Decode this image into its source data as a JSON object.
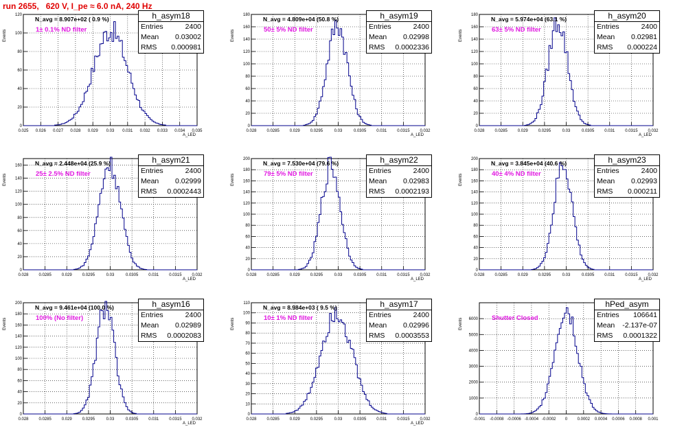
{
  "title": "run 2655,   620 V, I_pe ≈ 6.0 nA, 240 Hz",
  "colors": {
    "title": "#e00000",
    "filter": "#e018e0",
    "histogram": "#00008b"
  },
  "stat_labels": {
    "entries": "Entries",
    "mean": "Mean",
    "rms": "RMS"
  },
  "chart_data": [
    {
      "type": "bar",
      "name": "h_asym18",
      "entries": "2400",
      "mean": "0.03002",
      "rms": "0.000981",
      "navg": "N_avg = 8.907e+02 ( 0.9 %)",
      "filter": "1± 0.1% ND filter",
      "ylabel": "Events",
      "xlabel": "A_LED",
      "xlim": [
        0.025,
        0.035
      ],
      "ylim": [
        0,
        120
      ],
      "xticks": [
        "0.025",
        "0.026",
        "0.027",
        "0.028",
        "0.029",
        "0.03",
        "0.031",
        "0.032",
        "0.033",
        "0.034",
        "0.035"
      ],
      "yticks": [
        "0",
        "20",
        "40",
        "60",
        "80",
        "100",
        "120"
      ],
      "mu": 0.03002,
      "sigma": 0.000981,
      "peak": 103
    },
    {
      "type": "bar",
      "name": "h_asym19",
      "entries": "2400",
      "mean": "0.02998",
      "rms": "0.0002336",
      "navg": "N_avg = 4.809e+04 (50.8 %)",
      "filter": "50± 5% ND filter",
      "ylabel": "Events",
      "xlabel": "A_LED",
      "xlim": [
        0.028,
        0.032
      ],
      "ylim": [
        0,
        180
      ],
      "xticks": [
        "0.028",
        "0.0285",
        "0.029",
        "0.0295",
        "0.03",
        "0.0305",
        "0.031",
        "0.0315",
        "0.032"
      ],
      "yticks": [
        "0",
        "20",
        "40",
        "60",
        "80",
        "100",
        "120",
        "140",
        "160",
        "180"
      ],
      "mu": 0.02998,
      "sigma": 0.0002336,
      "peak": 165
    },
    {
      "type": "bar",
      "name": "h_asym20",
      "entries": "2400",
      "mean": "0.02981",
      "rms": "0.000224",
      "navg": "N_avg = 5.974e+04 (63.1 %)",
      "filter": "63± 5% ND filter",
      "ylabel": "Events",
      "xlabel": "A_LED",
      "xlim": [
        0.028,
        0.032
      ],
      "ylim": [
        0,
        180
      ],
      "xticks": [
        "0.028",
        "0.0285",
        "0.029",
        "0.0295",
        "0.03",
        "0.0305",
        "0.031",
        "0.0315",
        "0.032"
      ],
      "yticks": [
        "0",
        "20",
        "40",
        "60",
        "80",
        "100",
        "120",
        "140",
        "160",
        "180"
      ],
      "mu": 0.02981,
      "sigma": 0.000224,
      "peak": 170
    },
    {
      "type": "bar",
      "name": "h_asym21",
      "entries": "2400",
      "mean": "0.02999",
      "rms": "0.0002443",
      "navg": "N_avg = 2.448e+04 (25.9 %)",
      "filter": "25± 2.5% ND filter",
      "ylabel": "Events",
      "xlabel": "A_LED",
      "xlim": [
        0.028,
        0.032
      ],
      "ylim": [
        0,
        170
      ],
      "xticks": [
        "0.028",
        "0.0285",
        "0.029",
        "0.0295",
        "0.03",
        "0.0305",
        "0.031",
        "0.0315",
        "0.032"
      ],
      "yticks": [
        "0",
        "20",
        "40",
        "60",
        "80",
        "100",
        "120",
        "140",
        "160"
      ],
      "mu": 0.02999,
      "sigma": 0.0002443,
      "peak": 165
    },
    {
      "type": "bar",
      "name": "h_asym22",
      "entries": "2400",
      "mean": "0.02983",
      "rms": "0.0002193",
      "navg": "N_avg = 7.530e+04 (79.6 %)",
      "filter": "79± 5% ND filter",
      "ylabel": "Events",
      "xlabel": "A_LED",
      "xlim": [
        0.028,
        0.032
      ],
      "ylim": [
        0,
        200
      ],
      "xticks": [
        "0.028",
        "0.0285",
        "0.029",
        "0.0295",
        "0.03",
        "0.0305",
        "0.031",
        "0.0315",
        "0.032"
      ],
      "yticks": [
        "0",
        "20",
        "40",
        "60",
        "80",
        "100",
        "120",
        "140",
        "160",
        "180",
        "200"
      ],
      "mu": 0.02983,
      "sigma": 0.0002193,
      "peak": 188
    },
    {
      "type": "bar",
      "name": "h_asym23",
      "entries": "2400",
      "mean": "0.02993",
      "rms": "0.000211",
      "navg": "N_avg = 3.845e+04 (40.6 %)",
      "filter": "40± 4% ND filter",
      "ylabel": "Events",
      "xlabel": "A_LED",
      "xlim": [
        0.028,
        0.032
      ],
      "ylim": [
        0,
        200
      ],
      "xticks": [
        "0.028",
        "0.0285",
        "0.029",
        "0.0295",
        "0.03",
        "0.0305",
        "0.031",
        "0.0315",
        "0.032"
      ],
      "yticks": [
        "0",
        "20",
        "40",
        "60",
        "80",
        "100",
        "120",
        "140",
        "160",
        "180",
        "200"
      ],
      "mu": 0.02993,
      "sigma": 0.000211,
      "peak": 190
    },
    {
      "type": "bar",
      "name": "h_asym16",
      "entries": "2400",
      "mean": "0.02989",
      "rms": "0.0002083",
      "navg": "N_avg = 9.461e+04 (100.0 %)",
      "filter": "100% (No filter)",
      "ylabel": "Events",
      "xlabel": "A_LED",
      "xlim": [
        0.028,
        0.032
      ],
      "ylim": [
        0,
        200
      ],
      "xticks": [
        "0.028",
        "0.0285",
        "0.029",
        "0.0295",
        "0.03",
        "0.0305",
        "0.031",
        "0.0315",
        "0.032"
      ],
      "yticks": [
        "0",
        "20",
        "40",
        "60",
        "80",
        "100",
        "120",
        "140",
        "160",
        "180",
        "200"
      ],
      "mu": 0.02989,
      "sigma": 0.0002083,
      "peak": 195
    },
    {
      "type": "bar",
      "name": "h_asym17",
      "entries": "2400",
      "mean": "0.02996",
      "rms": "0.0003553",
      "navg": "N_avg = 8.984e+03 ( 9.5 %)",
      "filter": "10± 1% ND filter",
      "ylabel": "Events",
      "xlabel": "A_LED",
      "xlim": [
        0.028,
        0.032
      ],
      "ylim": [
        0,
        110
      ],
      "xticks": [
        "0.028",
        "0.0285",
        "0.029",
        "0.0295",
        "0.03",
        "0.0305",
        "0.031",
        "0.0315",
        "0.032"
      ],
      "yticks": [
        "0",
        "10",
        "20",
        "30",
        "40",
        "50",
        "60",
        "70",
        "80",
        "90",
        "100",
        "110"
      ],
      "mu": 0.02996,
      "sigma": 0.0003553,
      "peak": 103
    },
    {
      "type": "bar",
      "name": "hPed_asym",
      "entries": "106641",
      "mean": "-2.137e-07",
      "rms": "0.0001322",
      "navg": "",
      "filter": "Shutter Closed",
      "ylabel": "Events",
      "xlabel": "",
      "xlim": [
        -0.001,
        0.001
      ],
      "ylim": [
        0,
        7000
      ],
      "xticks": [
        "-0.001",
        "-0.0008",
        "-0.0006",
        "-0.0004",
        "-0.0002",
        "0",
        "0.0002",
        "0.0004",
        "0.0006",
        "0.0008",
        "0.001"
      ],
      "yticks": [
        "0",
        "1000",
        "2000",
        "3000",
        "4000",
        "5000",
        "6000"
      ],
      "mu": -2.14e-07,
      "sigma": 0.0001322,
      "peak": 6700
    }
  ]
}
